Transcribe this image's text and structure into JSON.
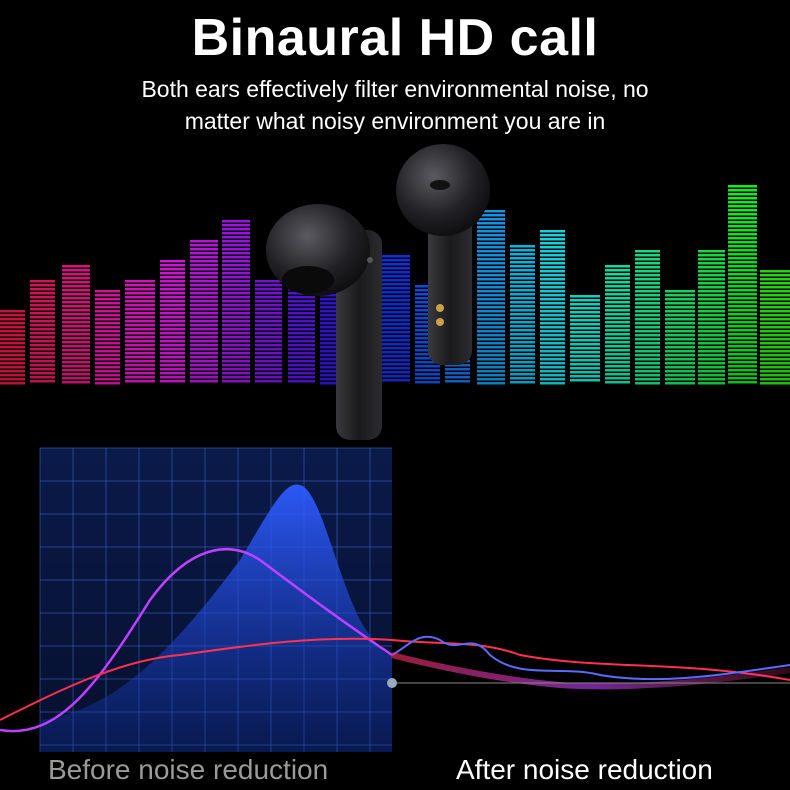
{
  "header": {
    "title": "Binaural HD call",
    "subtitle_line1": "Both ears effectively filter environmental noise, no",
    "subtitle_line2": "matter what noisy environment you are in"
  },
  "comparison": {
    "before_label": "Before noise reduction",
    "after_label": "After noise reduction"
  },
  "colors": {
    "background": "#000000",
    "title_text": "#ffffff",
    "before_label": "#9a9a9a",
    "after_label": "#ffffff",
    "grid_blue": "#1b3f9c",
    "curve_blue": "#2f5bff",
    "curve_magenta": "#c040ff",
    "curve_red": "#ff3050"
  },
  "product": {
    "icon": "wireless-earbuds",
    "color": "#1c1c1e"
  }
}
